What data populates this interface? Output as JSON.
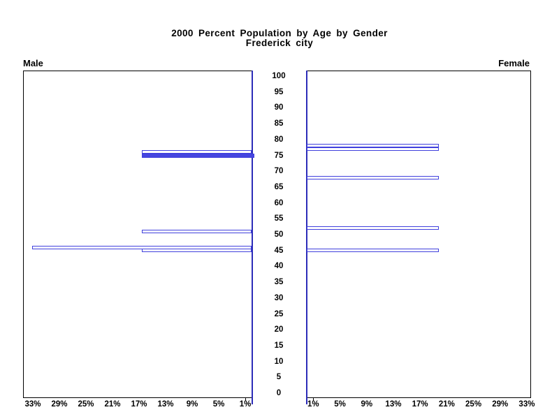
{
  "chart_data": {
    "type": "bar",
    "variant": "population-pyramid",
    "title": "2000 Percent Population by Age by Gender",
    "subtitle": "Frederick city",
    "age_axis": {
      "min": 0,
      "max": 100,
      "step": 5,
      "ticks": [
        100,
        95,
        90,
        85,
        80,
        75,
        70,
        65,
        60,
        55,
        50,
        45,
        40,
        35,
        30,
        25,
        20,
        15,
        10,
        5,
        0
      ]
    },
    "pct_axis": {
      "min": 0,
      "max": 34,
      "tick_step": 4
    },
    "colors": {
      "bar_fill": "#4646e0",
      "bar_outline": "#4040dd",
      "inner_axis_blue": "#2c2cb8",
      "frame": "#000000",
      "text": "#000000"
    },
    "panels": [
      {
        "name": "Male",
        "side": "left",
        "xtick_labels": [
          "33%",
          "29%",
          "25%",
          "21%",
          "17%",
          "13%",
          "9%",
          "5%",
          "1%"
        ],
        "xtick_pcts": [
          33,
          29,
          25,
          21,
          17,
          13,
          9,
          5,
          1
        ],
        "bars": [
          {
            "age": 76,
            "pct": 16.7,
            "filled": false
          },
          {
            "age": 75,
            "pct": 16.7,
            "filled": true
          },
          {
            "age": 51,
            "pct": 16.7,
            "filled": false
          },
          {
            "age": 46,
            "pct": 33.3,
            "filled": false
          },
          {
            "age": 45,
            "pct": 16.7,
            "filled": false
          }
        ]
      },
      {
        "name": "Female",
        "side": "right",
        "xtick_labels": [
          "1%",
          "5%",
          "9%",
          "13%",
          "17%",
          "21%",
          "25%",
          "29%",
          "33%"
        ],
        "xtick_pcts": [
          1,
          5,
          9,
          13,
          17,
          21,
          25,
          29,
          33
        ],
        "bars": [
          {
            "age": 78,
            "pct": 20,
            "filled": false
          },
          {
            "age": 77,
            "pct": 20,
            "filled": false
          },
          {
            "age": 68,
            "pct": 20,
            "filled": false
          },
          {
            "age": 52,
            "pct": 20,
            "filled": false
          },
          {
            "age": 45,
            "pct": 20,
            "filled": false
          }
        ]
      }
    ]
  }
}
